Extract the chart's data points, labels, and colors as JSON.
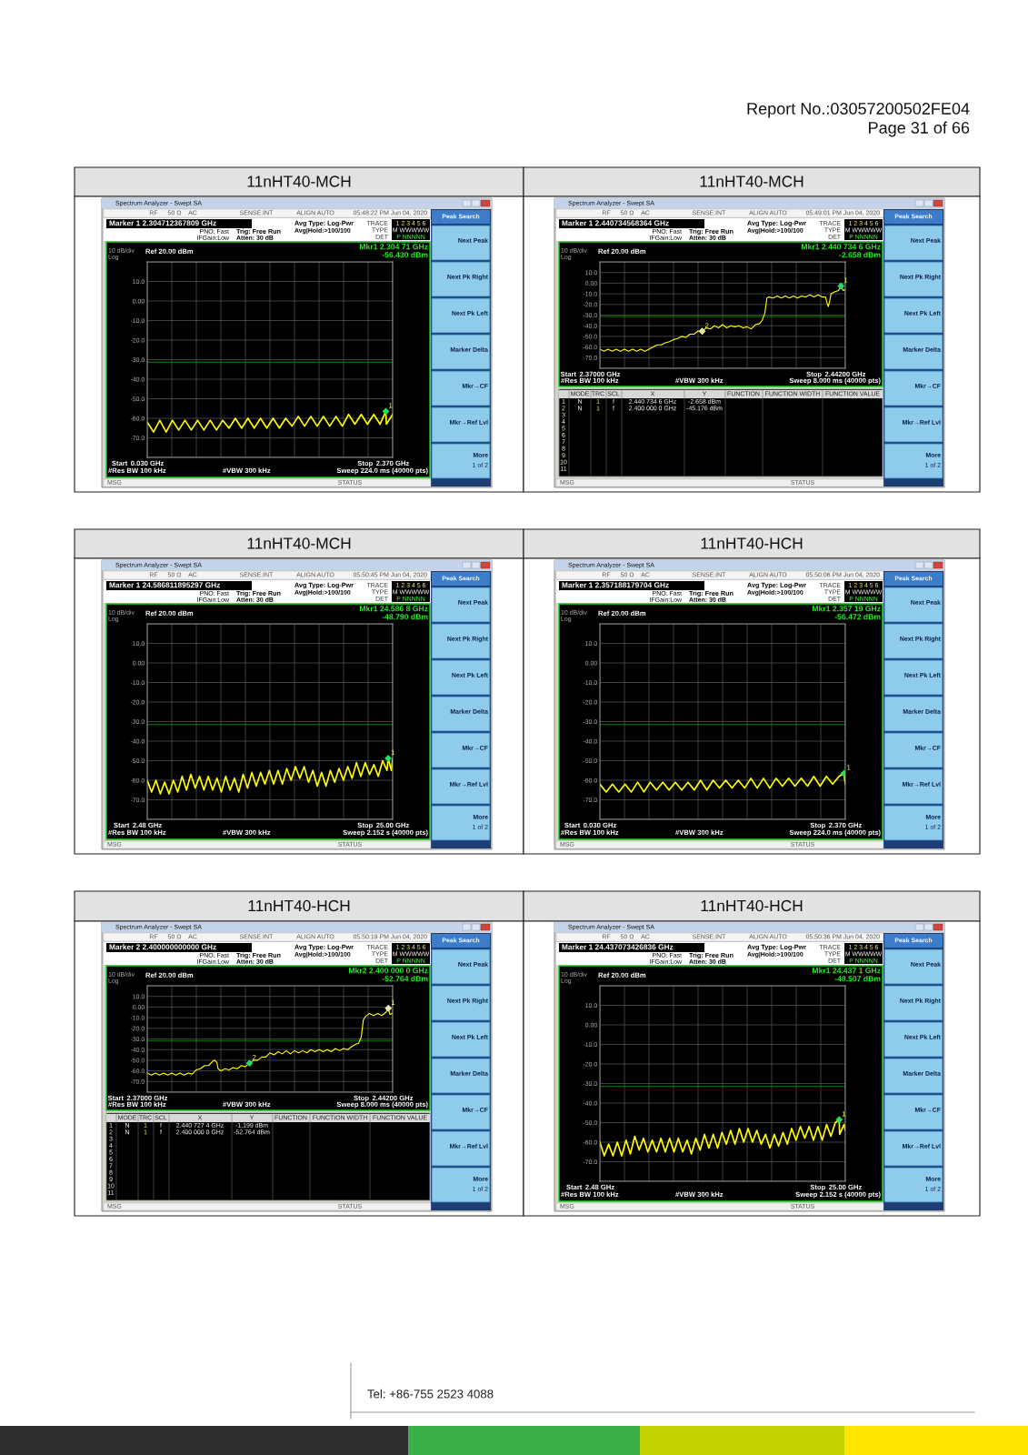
{
  "chart_data": [
    {
      "type": "line",
      "title": "11nHT40-MCH",
      "subtitle": "Spectrum Analyzer - Swept SA",
      "xlim": [
        0.03,
        2.37
      ],
      "xticks": [
        {
          "value": 0.03,
          "label": "0.030 GHz"
        },
        {
          "value": 0.264,
          "label": null
        },
        {
          "value": 0.498,
          "label": null
        },
        {
          "value": 0.732,
          "label": null
        },
        {
          "value": 0.966,
          "label": null
        },
        {
          "value": 1.2,
          "label": null
        },
        {
          "value": 1.434,
          "label": null
        },
        {
          "value": 1.668,
          "label": null
        },
        {
          "value": 1.902,
          "label": null
        },
        {
          "value": 2.136,
          "label": null
        },
        {
          "value": 2.37,
          "label": "2.370 GHz"
        }
      ],
      "ylim": [
        -80,
        20
      ],
      "yticks": [
        {
          "value": 20,
          "label": null
        },
        {
          "value": 10,
          "label": "10.0"
        },
        {
          "value": 0,
          "label": "0.00"
        },
        {
          "value": -10,
          "label": "-10.0"
        },
        {
          "value": -20,
          "label": "-20.0"
        },
        {
          "value": -30,
          "label": "-30.0"
        },
        {
          "value": -40,
          "label": "-40.0"
        },
        {
          "value": -50,
          "label": "-50.0"
        },
        {
          "value": -60,
          "label": "-60.0"
        },
        {
          "value": -70,
          "label": "-70.0"
        },
        {
          "value": -80,
          "label": null
        }
      ],
      "grid": true,
      "ref_lines": [
        {
          "axis": "y",
          "value": -31.3,
          "color": "#00a000"
        }
      ],
      "series": [
        {
          "type": "line",
          "color": "#ffff00",
          "x": [
            0.03,
            0.09,
            0.15,
            0.21,
            0.27,
            0.33,
            0.39,
            0.45,
            0.51,
            0.57,
            0.63,
            0.69,
            0.75,
            0.81,
            0.87,
            0.93,
            0.99,
            1.05,
            1.11,
            1.17,
            1.23,
            1.29,
            1.35,
            1.41,
            1.47,
            1.53,
            1.59,
            1.65,
            1.71,
            1.77,
            1.83,
            1.89,
            1.95,
            2.01,
            2.07,
            2.13,
            2.19,
            2.25,
            2.30471,
            2.31,
            2.37
          ],
          "values": [
            -62,
            -67,
            -61,
            -67,
            -61,
            -66,
            -61,
            -66,
            -61,
            -66,
            -61,
            -66,
            -61,
            -65,
            -60,
            -65,
            -60,
            -65,
            -60,
            -65,
            -60,
            -65,
            -60,
            -64,
            -59,
            -64,
            -59,
            -64,
            -59,
            -64,
            -59,
            -64,
            -58,
            -63,
            -58,
            -63,
            -58,
            -63,
            -56.43,
            -63,
            -58
          ]
        },
        {
          "type": "scatter",
          "name": "1",
          "color": "#20e060",
          "marker": "diamond",
          "x": [
            2.30471
          ],
          "values": [
            -56.43
          ]
        }
      ],
      "annotations": [
        "Marker 1 2.304712367809 GHz",
        "PNO: Fast",
        "IFGain:Low",
        "Trig: Free Run",
        "Atten: 30 dB",
        "Avg Type: Log-Pwr",
        "Avg|Hold:>100/100",
        "05:48:22 PM Jun 04, 2020",
        "RF",
        "50 Ω",
        "AC",
        "SENSE:INT",
        "ALIGN AUTO",
        "TRACE",
        "TYPE",
        "DET",
        "1 2 3 4 5 6",
        "M WWWWW",
        "P NNNNN",
        "10 dB/div",
        "Log",
        "Ref 20.00 dBm",
        "Mkr1 2.304 71 GHz",
        "-56.430 dBm",
        "#Res BW 100 kHz",
        "#VBW 300 kHz",
        "Sweep 224.0 ms (40000 pts)",
        "Peak Search",
        "Next Peak",
        "Next Pk Right",
        "Next Pk Left",
        "Marker Delta",
        "Mkr→CF",
        "Mkr→Ref Lvl",
        "More",
        "1 of 2",
        "MSG",
        "STATUS",
        "Start",
        "Stop",
        "Report No.:03057200502FE04",
        "Page 31 of 66"
      ]
    },
    {
      "type": "line",
      "title": "11nHT40-MCH",
      "subtitle": "Spectrum Analyzer - Swept SA",
      "xlim": [
        2.37,
        2.442
      ],
      "xticks": [
        {
          "value": 2.37,
          "label": "2.37000 GHz"
        },
        {
          "value": 2.3772,
          "label": null
        },
        {
          "value": 2.3844,
          "label": null
        },
        {
          "value": 2.3916,
          "label": null
        },
        {
          "value": 2.3988,
          "label": null
        },
        {
          "value": 2.406,
          "label": null
        },
        {
          "value": 2.4132,
          "label": null
        },
        {
          "value": 2.4204,
          "label": null
        },
        {
          "value": 2.4276,
          "label": null
        },
        {
          "value": 2.4348,
          "label": null
        },
        {
          "value": 2.442,
          "label": "2.44200 GHz"
        }
      ],
      "ylim": [
        -80,
        20
      ],
      "yticks": [
        {
          "value": 20,
          "label": null
        },
        {
          "value": 10,
          "label": "10.0"
        },
        {
          "value": 0,
          "label": "0.00"
        },
        {
          "value": -10,
          "label": "-10.0"
        },
        {
          "value": -20,
          "label": "-20.0"
        },
        {
          "value": -30,
          "label": "-30.0"
        },
        {
          "value": -40,
          "label": "-40.0"
        },
        {
          "value": -50,
          "label": "-50.0"
        },
        {
          "value": -60,
          "label": "-60.0"
        },
        {
          "value": -70,
          "label": "-70.0"
        },
        {
          "value": -80,
          "label": null
        }
      ],
      "grid": true,
      "ref_lines": [
        {
          "axis": "y",
          "value": -31.3,
          "color": "#00a000"
        }
      ],
      "series": [
        {
          "type": "line",
          "color": "#ffff00",
          "x": [
            2.37,
            2.3712,
            2.3724,
            2.3736,
            2.3748,
            2.376,
            2.3772,
            2.3784,
            2.3796,
            2.3808,
            2.382,
            2.3832,
            2.3844,
            2.3856,
            2.3868,
            2.388,
            2.3892,
            2.3904,
            2.3916,
            2.3928,
            2.394,
            2.3952,
            2.3964,
            2.3976,
            2.3988,
            2.4,
            2.4012,
            2.4024,
            2.4036,
            2.4048,
            2.406,
            2.4072,
            2.4084,
            2.4096,
            2.4108,
            2.412,
            2.4132,
            2.4144,
            2.4156,
            2.4168,
            2.4176,
            2.4184,
            2.419,
            2.4196,
            2.4208,
            2.422,
            2.4232,
            2.4244,
            2.4256,
            2.4268,
            2.428,
            2.4292,
            2.4304,
            2.4316,
            2.4328,
            2.434,
            2.4352,
            2.4362,
            2.4366,
            2.437,
            2.4374,
            2.4378,
            2.439,
            2.44,
            2.4407346,
            2.4414,
            2.442
          ],
          "values": [
            -62,
            -64,
            -62,
            -64,
            -62,
            -64,
            -62,
            -64,
            -62,
            -64,
            -62,
            -64,
            -62,
            -60,
            -58,
            -58,
            -56,
            -55,
            -53,
            -52,
            -50,
            -51,
            -48,
            -48,
            -45,
            -45.176,
            -42,
            -43,
            -40,
            -42,
            -39,
            -42,
            -40,
            -41,
            -40,
            -42,
            -41,
            -43,
            -39,
            -38,
            -35,
            -28,
            -14,
            -13,
            -14,
            -12,
            -14,
            -12,
            -14,
            -12,
            -14,
            -12,
            -13,
            -11,
            -13,
            -11,
            -13,
            -13,
            -18,
            -22,
            -17,
            -10,
            -8,
            -7,
            -2.658,
            -7,
            -6
          ]
        },
        {
          "type": "scatter",
          "name": "1",
          "color": "#20e060",
          "marker": "diamond",
          "x": [
            2.4407346
          ],
          "values": [
            -2.658
          ]
        },
        {
          "type": "scatter",
          "name": "2",
          "color": "#e8e8b0",
          "marker": "diamond",
          "x": [
            2.4
          ],
          "values": [
            -45.176
          ]
        }
      ],
      "annotations": [
        "Marker 1 2.440734568364 GHz",
        "PNO: Fast",
        "IFGain:Low",
        "Trig: Free Run",
        "Atten: 30 dB",
        "Avg Type: Log-Pwr",
        "Avg|Hold:>100/100",
        "05:49:01 PM Jun 04, 2020",
        "RF",
        "50 Ω",
        "AC",
        "SENSE:INT",
        "ALIGN AUTO",
        "TRACE",
        "TYPE",
        "DET",
        "1 2 3 4 5 6",
        "M WWWWW",
        "P NNNNN",
        "10 dB/div",
        "Log",
        "Ref 20.00 dBm",
        "Mkr1 2.440 734 6 GHz",
        "-2.658 dBm",
        "#Res BW 100 kHz",
        "#VBW 300 kHz",
        "Sweep 8.000 ms (40000 pts)",
        "Peak Search",
        "Next Peak",
        "Next Pk Right",
        "Next Pk Left",
        "Marker Delta",
        "Mkr→CF",
        "Mkr→Ref Lvl",
        "More",
        "1 of 2",
        "MSG",
        "STATUS",
        "Start",
        "Stop",
        "MODE\tTRC\tSCL\tX\tY\tFUNCTION\tFUNCTION WIDTH\tFUNCTION VALUE",
        "1\tN\t1\tf\t2.440 734 6 GHz\t-2.658 dBm",
        "2\tN\t1\tf\t2.400 000 0 GHz\t-45.176 dBm",
        "3",
        "4",
        "5",
        "6",
        "7",
        "8",
        "9",
        "10",
        "11"
      ]
    },
    {
      "type": "line",
      "title": "11nHT40-MCH",
      "subtitle": "Spectrum Analyzer - Swept SA",
      "xlim": [
        2.48,
        25
      ],
      "xticks": [
        {
          "value": 2.48,
          "label": "2.48 GHz"
        },
        {
          "value": 4.732,
          "label": null
        },
        {
          "value": 6.984,
          "label": null
        },
        {
          "value": 9.236,
          "label": null
        },
        {
          "value": 11.488,
          "label": null
        },
        {
          "value": 13.74,
          "label": null
        },
        {
          "value": 15.992,
          "label": null
        },
        {
          "value": 18.244,
          "label": null
        },
        {
          "value": 20.496,
          "label": null
        },
        {
          "value": 22.748,
          "label": null
        },
        {
          "value": 25,
          "label": "25.00 GHz"
        }
      ],
      "ylim": [
        -80,
        20
      ],
      "yticks": [
        {
          "value": 20,
          "label": null
        },
        {
          "value": 10,
          "label": "10.0"
        },
        {
          "value": 0,
          "label": "0.00"
        },
        {
          "value": -10,
          "label": "-10.0"
        },
        {
          "value": -20,
          "label": "-20.0"
        },
        {
          "value": -30,
          "label": "-30.0"
        },
        {
          "value": -40,
          "label": "-40.0"
        },
        {
          "value": -50,
          "label": "-50.0"
        },
        {
          "value": -60,
          "label": "-60.0"
        },
        {
          "value": -70,
          "label": "-70.0"
        },
        {
          "value": -80,
          "label": null
        }
      ],
      "grid": true,
      "ref_lines": [
        {
          "axis": "y",
          "value": -31.5,
          "color": "#00a000"
        }
      ],
      "series": [
        {
          "type": "line",
          "color": "#ffff00",
          "x": [
            2.48,
            2.88,
            3.28,
            3.68,
            4.08,
            4.48,
            4.88,
            5.28,
            5.68,
            6.08,
            6.48,
            6.88,
            7.28,
            7.68,
            8.08,
            8.48,
            8.88,
            9.28,
            9.68,
            10.08,
            10.48,
            10.88,
            11.28,
            11.68,
            12.08,
            12.48,
            12.88,
            13.28,
            13.68,
            14.08,
            14.48,
            14.88,
            15.28,
            15.68,
            16.08,
            16.48,
            16.88,
            17.28,
            17.68,
            18.08,
            18.48,
            18.88,
            19.28,
            19.68,
            20.08,
            20.48,
            20.88,
            21.28,
            21.68,
            22.08,
            22.48,
            22.88,
            23.28,
            23.68,
            24.08,
            24.48,
            24.5868,
            24.88,
            25.0
          ],
          "values": [
            -60,
            -66,
            -60,
            -67,
            -61,
            -67,
            -60,
            -66,
            -58,
            -65,
            -57,
            -64,
            -58,
            -65,
            -58,
            -65,
            -59,
            -66,
            -58,
            -65,
            -59,
            -66,
            -57,
            -64,
            -56,
            -63,
            -56,
            -62,
            -55,
            -62,
            -55,
            -62,
            -54,
            -60,
            -53,
            -59,
            -53,
            -61,
            -55,
            -63,
            -56,
            -63,
            -55,
            -61,
            -54,
            -60,
            -53,
            -59,
            -51,
            -58,
            -51,
            -57,
            -52,
            -58,
            -50,
            -55,
            -48.79,
            -55,
            -49
          ]
        },
        {
          "type": "scatter",
          "name": "1",
          "color": "#20e060",
          "marker": "diamond",
          "x": [
            24.5868
          ],
          "values": [
            -48.79
          ]
        }
      ],
      "annotations": [
        "Marker 1 24.586811895297 GHz",
        "PNO: Fast",
        "IFGain:Low",
        "Trig: Free Run",
        "Atten: 30 dB",
        "Avg Type: Log-Pwr",
        "Avg|Hold:>100/100",
        "05:50:45 PM Jun 04, 2020",
        "RF",
        "50 Ω",
        "AC",
        "SENSE:INT",
        "ALIGN AUTO",
        "TRACE",
        "TYPE",
        "DET",
        "1 2 3 4 5 6",
        "M WWWWW",
        "P NNNNN",
        "10 dB/div",
        "Log",
        "Ref 20.00 dBm",
        "Mkr1 24.586 8 GHz",
        "-48.790 dBm",
        "#Res BW 100 kHz",
        "#VBW 300 kHz",
        "Sweep 2.152 s (40000 pts)",
        "Peak Search",
        "Next Peak",
        "Next Pk Right",
        "Next Pk Left",
        "Marker Delta",
        "Mkr→CF",
        "Mkr→Ref Lvl",
        "More",
        "1 of 2",
        "MSG",
        "STATUS",
        "Start",
        "Stop"
      ]
    },
    {
      "type": "line",
      "title": "11nHT40-HCH",
      "subtitle": "Spectrum Analyzer - Swept SA",
      "xlim": [
        0.03,
        2.37
      ],
      "xticks": [
        {
          "value": 0.03,
          "label": "0.030 GHz"
        },
        {
          "value": 0.264,
          "label": null
        },
        {
          "value": 0.498,
          "label": null
        },
        {
          "value": 0.732,
          "label": null
        },
        {
          "value": 0.966,
          "label": null
        },
        {
          "value": 1.2,
          "label": null
        },
        {
          "value": 1.434,
          "label": null
        },
        {
          "value": 1.668,
          "label": null
        },
        {
          "value": 1.902,
          "label": null
        },
        {
          "value": 2.136,
          "label": null
        },
        {
          "value": 2.37,
          "label": "2.370 GHz"
        }
      ],
      "ylim": [
        -80,
        20
      ],
      "yticks": [
        {
          "value": 20,
          "label": null
        },
        {
          "value": 10,
          "label": "10.0"
        },
        {
          "value": 0,
          "label": "0.00"
        },
        {
          "value": -10,
          "label": "-10.0"
        },
        {
          "value": -20,
          "label": "-20.0"
        },
        {
          "value": -30,
          "label": "-30.0"
        },
        {
          "value": -40,
          "label": "-40.0"
        },
        {
          "value": -50,
          "label": "-50.0"
        },
        {
          "value": -60,
          "label": "-60.0"
        },
        {
          "value": -70,
          "label": "-70.0"
        },
        {
          "value": -80,
          "label": null
        }
      ],
      "grid": true,
      "ref_lines": [
        {
          "axis": "y",
          "value": -31.5,
          "color": "#00a000"
        }
      ],
      "series": [
        {
          "type": "line",
          "color": "#ffff00",
          "x": [
            0.03,
            0.09,
            0.15,
            0.21,
            0.27,
            0.33,
            0.39,
            0.45,
            0.51,
            0.57,
            0.63,
            0.69,
            0.75,
            0.81,
            0.87,
            0.93,
            0.99,
            1.05,
            1.11,
            1.17,
            1.23,
            1.29,
            1.35,
            1.41,
            1.47,
            1.53,
            1.59,
            1.65,
            1.71,
            1.77,
            1.83,
            1.89,
            1.95,
            2.01,
            2.07,
            2.13,
            2.19,
            2.25,
            2.31,
            2.35719,
            2.37
          ],
          "values": [
            -62,
            -66,
            -62,
            -66,
            -62,
            -66,
            -61,
            -66,
            -61,
            -65,
            -61,
            -65,
            -61,
            -65,
            -61,
            -65,
            -60,
            -65,
            -60,
            -64,
            -60,
            -64,
            -60,
            -64,
            -59,
            -64,
            -59,
            -64,
            -59,
            -63,
            -59,
            -63,
            -59,
            -63,
            -58,
            -63,
            -58,
            -62,
            -58,
            -56.472,
            -62
          ]
        },
        {
          "type": "scatter",
          "name": "1",
          "color": "#20e060",
          "marker": "diamond",
          "x": [
            2.35719
          ],
          "values": [
            -56.472
          ]
        }
      ],
      "annotations": [
        "Marker 1 2.357188179704 GHz",
        "PNO: Fast",
        "IFGain:Low",
        "Trig: Free Run",
        "Atten: 30 dB",
        "Avg Type: Log-Pwr",
        "Avg|Hold:>100/100",
        "05:50:06 PM Jun 04, 2020",
        "RF",
        "50 Ω",
        "AC",
        "SENSE:INT",
        "ALIGN AUTO",
        "TRACE",
        "TYPE",
        "DET",
        "1 2 3 4 5 6",
        "M WWWWW",
        "P NNNNN",
        "10 dB/div",
        "Log",
        "Ref 20.00 dBm",
        "Mkr1 2.357 19 GHz",
        "-56.472 dBm",
        "#Res BW 100 kHz",
        "#VBW 300 kHz",
        "Sweep 224.0 ms (40000 pts)",
        "Peak Search",
        "Next Peak",
        "Next Pk Right",
        "Next Pk Left",
        "Marker Delta",
        "Mkr→CF",
        "Mkr→Ref Lvl",
        "More",
        "1 of 2",
        "MSG",
        "STATUS",
        "Start",
        "Stop"
      ]
    },
    {
      "type": "line",
      "title": "11nHT40-HCH",
      "subtitle": "Spectrum Analyzer - Swept SA",
      "xlim": [
        2.37,
        2.442
      ],
      "xticks": [
        {
          "value": 2.37,
          "label": "2.37000 GHz"
        },
        {
          "value": 2.3772,
          "label": null
        },
        {
          "value": 2.3844,
          "label": null
        },
        {
          "value": 2.3916,
          "label": null
        },
        {
          "value": 2.3988,
          "label": null
        },
        {
          "value": 2.406,
          "label": null
        },
        {
          "value": 2.4132,
          "label": null
        },
        {
          "value": 2.4204,
          "label": null
        },
        {
          "value": 2.4276,
          "label": null
        },
        {
          "value": 2.4348,
          "label": null
        },
        {
          "value": 2.442,
          "label": "2.44200 GHz"
        }
      ],
      "ylim": [
        -80,
        20
      ],
      "yticks": [
        {
          "value": 20,
          "label": null
        },
        {
          "value": 10,
          "label": "10.0"
        },
        {
          "value": 0,
          "label": "0.00"
        },
        {
          "value": -10,
          "label": "-10.0"
        },
        {
          "value": -20,
          "label": "-20.0"
        },
        {
          "value": -30,
          "label": "-30.0"
        },
        {
          "value": -40,
          "label": "-40.0"
        },
        {
          "value": -50,
          "label": "-50.0"
        },
        {
          "value": -60,
          "label": "-60.0"
        },
        {
          "value": -70,
          "label": "-70.0"
        },
        {
          "value": -80,
          "label": null
        }
      ],
      "grid": true,
      "ref_lines": [
        {
          "axis": "y",
          "value": -31.5,
          "color": "#00a000"
        }
      ],
      "series": [
        {
          "type": "line",
          "color": "#ffff00",
          "x": [
            2.37,
            2.3712,
            2.3724,
            2.3736,
            2.3748,
            2.376,
            2.3772,
            2.3784,
            2.3796,
            2.3808,
            2.382,
            2.3832,
            2.3844,
            2.3856,
            2.3868,
            2.388,
            2.3892,
            2.3898,
            2.3904,
            2.3908,
            2.3916,
            2.3928,
            2.394,
            2.3952,
            2.3964,
            2.3976,
            2.3988,
            2.4,
            2.4012,
            2.4024,
            2.4036,
            2.4048,
            2.406,
            2.4072,
            2.4084,
            2.4096,
            2.4108,
            2.412,
            2.4132,
            2.4144,
            2.4156,
            2.4168,
            2.418,
            2.4192,
            2.4204,
            2.4216,
            2.4228,
            2.424,
            2.4252,
            2.4264,
            2.4276,
            2.4288,
            2.43,
            2.4312,
            2.432,
            2.4328,
            2.4334,
            2.434,
            2.4352,
            2.4364,
            2.4376,
            2.4388,
            2.44,
            2.4407274,
            2.4412,
            2.442
          ],
          "values": [
            -62,
            -64,
            -62,
            -64,
            -62,
            -64,
            -62,
            -64,
            -62,
            -64,
            -62,
            -63,
            -59,
            -58,
            -55,
            -55,
            -51,
            -50,
            -52,
            -58,
            -60,
            -58,
            -59,
            -57,
            -58,
            -55,
            -56,
            -52.764,
            -50,
            -50,
            -47,
            -47,
            -43,
            -45,
            -42,
            -44,
            -41,
            -44,
            -41,
            -43,
            -41,
            -43,
            -40,
            -42,
            -40,
            -42,
            -40,
            -42,
            -39,
            -41,
            -39,
            -40,
            -37,
            -35,
            -34,
            -28,
            -12,
            -9,
            -6,
            -8,
            -6,
            -8,
            -5,
            -1.199,
            -7,
            -6
          ]
        },
        {
          "type": "scatter",
          "name": "1",
          "color": "#e8e8b0",
          "marker": "diamond",
          "x": [
            2.4407274
          ],
          "values": [
            -1.199
          ]
        },
        {
          "type": "scatter",
          "name": "2",
          "color": "#20e060",
          "marker": "diamond",
          "x": [
            2.4
          ],
          "values": [
            -52.764
          ]
        }
      ],
      "annotations": [
        "Marker 2 2.400000000000 GHz",
        "PNO: Fast",
        "IFGain:Low",
        "Trig: Free Run",
        "Atten: 30 dB",
        "Avg Type: Log-Pwr",
        "Avg|Hold:>100/100",
        "05:50:19 PM Jun 04, 2020",
        "RF",
        "50 Ω",
        "AC",
        "SENSE:INT",
        "ALIGN AUTO",
        "TRACE",
        "TYPE",
        "DET",
        "1 2 3 4 5 6",
        "M WWWWW",
        "P NNNNN",
        "10 dB/div",
        "Log",
        "Ref 20.00 dBm",
        "Mkr2 2.400 000 0 GHz",
        "-52.764 dBm",
        "#Res BW 100 kHz",
        "#VBW 300 kHz",
        "Sweep 8.000 ms (40000 pts)",
        "Peak Search",
        "Next Peak",
        "Next Pk Right",
        "Next Pk Left",
        "Marker Delta",
        "Mkr→CF",
        "Mkr→Ref Lvl",
        "More",
        "1 of 2",
        "MSG",
        "STATUS",
        "Start",
        "Stop",
        "MODE\tTRC\tSCL\tX\tY\tFUNCTION\tFUNCTION WIDTH\tFUNCTION VALUE",
        "1\tN\t1\tf\t2.440 727 4 GHz\t-1.199 dBm",
        "2\tN\t1\tf\t2.400 000 0 GHz\t-52.764 dBm",
        "3",
        "4",
        "5",
        "6",
        "7",
        "8",
        "9",
        "10",
        "11"
      ]
    },
    {
      "type": "line",
      "title": "11nHT40-HCH",
      "subtitle": "Spectrum Analyzer - Swept SA",
      "xlim": [
        2.48,
        25
      ],
      "xticks": [
        {
          "value": 2.48,
          "label": "2.48 GHz"
        },
        {
          "value": 4.732,
          "label": null
        },
        {
          "value": 6.984,
          "label": null
        },
        {
          "value": 9.236,
          "label": null
        },
        {
          "value": 11.488,
          "label": null
        },
        {
          "value": 13.74,
          "label": null
        },
        {
          "value": 15.992,
          "label": null
        },
        {
          "value": 18.244,
          "label": null
        },
        {
          "value": 20.496,
          "label": null
        },
        {
          "value": 22.748,
          "label": null
        },
        {
          "value": 25,
          "label": "25.00 GHz"
        }
      ],
      "ylim": [
        -80,
        20
      ],
      "yticks": [
        {
          "value": 20,
          "label": null
        },
        {
          "value": 10,
          "label": "10.0"
        },
        {
          "value": 0,
          "label": "0.00"
        },
        {
          "value": -10,
          "label": "-10.0"
        },
        {
          "value": -20,
          "label": "-20.0"
        },
        {
          "value": -30,
          "label": "-30.0"
        },
        {
          "value": -40,
          "label": "-40.0"
        },
        {
          "value": -50,
          "label": "-50.0"
        },
        {
          "value": -60,
          "label": "-60.0"
        },
        {
          "value": -70,
          "label": "-70.0"
        },
        {
          "value": -80,
          "label": null
        }
      ],
      "grid": true,
      "ref_lines": [
        {
          "axis": "y",
          "value": -31.5,
          "color": "#00a000"
        }
      ],
      "series": [
        {
          "type": "line",
          "color": "#ffff00",
          "x": [
            2.48,
            2.88,
            3.28,
            3.68,
            4.08,
            4.48,
            4.88,
            5.28,
            5.68,
            6.08,
            6.48,
            6.88,
            7.28,
            7.68,
            8.08,
            8.48,
            8.88,
            9.28,
            9.68,
            10.08,
            10.48,
            10.88,
            11.28,
            11.68,
            12.08,
            12.48,
            12.88,
            13.28,
            13.68,
            14.08,
            14.48,
            14.88,
            15.28,
            15.68,
            16.08,
            16.48,
            16.88,
            17.28,
            17.68,
            18.08,
            18.48,
            18.88,
            19.28,
            19.68,
            20.08,
            20.48,
            20.88,
            21.28,
            21.68,
            22.08,
            22.48,
            22.88,
            23.28,
            23.68,
            24.08,
            24.4371,
            24.48,
            24.88,
            25.0
          ],
          "values": [
            -60,
            -67,
            -61,
            -67,
            -60,
            -67,
            -59,
            -66,
            -57,
            -64,
            -58,
            -65,
            -59,
            -65,
            -58,
            -65,
            -58,
            -65,
            -58,
            -65,
            -59,
            -66,
            -58,
            -64,
            -56,
            -63,
            -56,
            -63,
            -55,
            -61,
            -54,
            -61,
            -53,
            -60,
            -53,
            -60,
            -54,
            -61,
            -56,
            -63,
            -56,
            -62,
            -55,
            -61,
            -53,
            -59,
            -52,
            -58,
            -52,
            -59,
            -52,
            -59,
            -51,
            -57,
            -50,
            -48.507,
            -56,
            -51,
            -54
          ]
        },
        {
          "type": "scatter",
          "name": "1",
          "color": "#20e060",
          "marker": "diamond",
          "x": [
            24.4371
          ],
          "values": [
            -48.507
          ]
        }
      ],
      "annotations": [
        "Marker 1 24.437073426836 GHz",
        "PNO: Fast",
        "IFGain:Low",
        "Trig: Free Run",
        "Atten: 30 dB",
        "Avg Type: Log-Pwr",
        "Avg|Hold:>100/100",
        "05:50:36 PM Jun 04, 2020",
        "RF",
        "50 Ω",
        "AC",
        "SENSE:INT",
        "ALIGN AUTO",
        "TRACE",
        "TYPE",
        "DET",
        "1 2 3 4 5 6",
        "M WWWWW",
        "P NNNNN",
        "10 dB/div",
        "Log",
        "Ref 20.00 dBm",
        "Mkr1 24.437 1 GHz",
        "-48.507 dBm",
        "#Res BW 100 kHz",
        "#VBW 300 kHz",
        "Sweep 2.152 s (40000 pts)",
        "Peak Search",
        "Next Peak",
        "Next Pk Right",
        "Next Pk Left",
        "Marker Delta",
        "Mkr→CF",
        "Mkr→Ref Lvl",
        "More",
        "1 of 2",
        "MSG",
        "STATUS",
        "Start",
        "Stop",
        "Tel: +86-755 2523 4088"
      ]
    }
  ]
}
